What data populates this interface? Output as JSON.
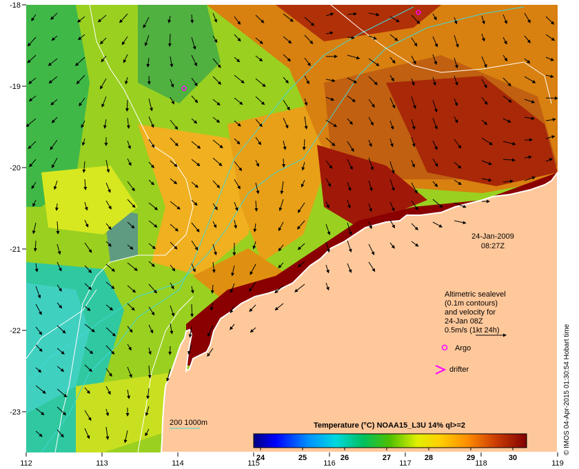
{
  "map": {
    "lon_ticks": [
      "112",
      "113",
      "114",
      "115",
      "116",
      "117",
      "118",
      "119"
    ],
    "lat_ticks": [
      "-18",
      "-19",
      "-20",
      "-21",
      "-22",
      "-23"
    ],
    "date": "24-Jan-2009",
    "time": "08:27Z",
    "legend": {
      "line1": "Altimetric sealevel",
      "line2": "(0.1m contours)",
      "line3": "and velocity for",
      "line4": "24-Jan 08Z",
      "line5": "0.5m/s (1kt 24h)",
      "argo_label": "Argo",
      "drifter_label": "drifter",
      "isobath_label": "200  1000m"
    },
    "colorbar": {
      "title": "Temperature (°C) NOAA15_L3U 14% ql>=2",
      "ticks": [
        "24",
        "25",
        "26",
        "27",
        "28",
        "29",
        "30"
      ],
      "colors": [
        "#000080",
        "#0000ff",
        "#0080ff",
        "#00c8ff",
        "#00e0c0",
        "#00c060",
        "#40c000",
        "#b8e000",
        "#ffff00",
        "#ffc000",
        "#ff8000",
        "#e05000",
        "#b01000",
        "#800000"
      ]
    },
    "credit": "© IMOS 04-Apr-2015 01:30:54 Hobart time",
    "colors": {
      "land": "#ffc89b",
      "coast": "#ffffff",
      "isobath": "#40d8d8",
      "argo": "#ff00ff"
    }
  }
}
